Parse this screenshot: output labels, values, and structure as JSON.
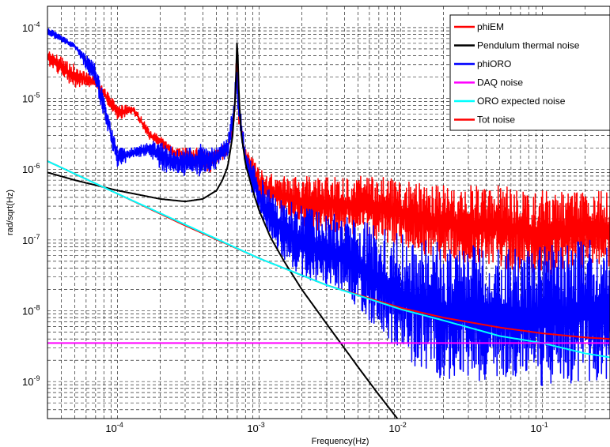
{
  "chart_data": {
    "type": "line",
    "title": "",
    "xlabel": "Frequency(Hz)",
    "ylabel": "rad/sqrt(Hz)",
    "x_scale": "log",
    "y_scale": "log",
    "xlim": [
      3.2e-05,
      0.3
    ],
    "ylim": [
      3e-10,
      0.0002
    ],
    "grid": true,
    "legend": "top-right",
    "x_ticks": [
      {
        "base": "10",
        "exp": "-4",
        "value": 0.0001
      },
      {
        "base": "10",
        "exp": "-3",
        "value": 0.001
      },
      {
        "base": "10",
        "exp": "-2",
        "value": 0.01
      },
      {
        "base": "10",
        "exp": "-1",
        "value": 0.1
      }
    ],
    "y_ticks": [
      {
        "base": "10",
        "exp": "-4",
        "value": 0.0001
      },
      {
        "base": "10",
        "exp": "-5",
        "value": 1e-05
      },
      {
        "base": "10",
        "exp": "-6",
        "value": 1e-06
      },
      {
        "base": "10",
        "exp": "-7",
        "value": 1e-07
      },
      {
        "base": "10",
        "exp": "-8",
        "value": 1e-08
      },
      {
        "base": "10",
        "exp": "-9",
        "value": 1e-09
      }
    ],
    "series": [
      {
        "name": "phiEM",
        "color": "#ff0000",
        "style": "noisy",
        "envelope": {
          "x": [
            3.2e-05,
            5e-05,
            7e-05,
            0.0001,
            0.00013,
            0.00017,
            0.0002,
            0.00025,
            0.0003,
            0.00035,
            0.0004,
            0.00045,
            0.0005,
            0.0006,
            0.00067,
            0.00069,
            0.00072,
            0.0008,
            0.0009,
            0.001,
            0.0012,
            0.0015,
            0.002,
            0.003,
            0.005,
            0.007,
            0.01,
            0.02,
            0.05,
            0.1,
            0.2,
            0.3
          ],
          "lo": [
            3e-05,
            1.4e-05,
            1.5e-05,
            5e-06,
            6e-06,
            2.5e-06,
            2.2e-06,
            1.4e-06,
            1.2e-06,
            1e-06,
            1e-06,
            9e-07,
            1.2e-06,
            1.5e-06,
            4e-06,
            2e-05,
            4e-06,
            1.2e-06,
            7e-07,
            4e-07,
            2.5e-07,
            2e-07,
            1.5e-07,
            1.3e-07,
            1.2e-07,
            1e-07,
            8e-08,
            5e-08,
            4e-08,
            3e-08,
            4e-08,
            4e-08
          ],
          "hi": [
            5e-05,
            3e-05,
            2e-05,
            8e-06,
            8e-06,
            3.5e-06,
            3e-06,
            2e-06,
            2e-06,
            2e-06,
            2e-06,
            1.8e-06,
            2e-06,
            2.5e-06,
            8e-06,
            5e-05,
            8e-06,
            2e-06,
            1.5e-06,
            1e-06,
            9e-07,
            8e-07,
            8e-07,
            8e-07,
            8e-07,
            8e-07,
            7e-07,
            6e-07,
            6e-07,
            5e-07,
            5e-07,
            5e-07
          ]
        }
      },
      {
        "name": "Pendulum thermal noise",
        "color": "#000000",
        "style": "smooth",
        "x": [
          3.2e-05,
          5e-05,
          0.0001,
          0.0002,
          0.0003,
          0.0004,
          0.0005,
          0.00055,
          0.0006,
          0.00065,
          0.00068,
          0.00069,
          0.0007,
          0.00071,
          0.00072,
          0.00075,
          0.0008,
          0.0009,
          0.001,
          0.0012,
          0.0015,
          0.002,
          0.003,
          0.005,
          0.007,
          0.01
        ],
        "y": [
          9e-07,
          7e-07,
          5e-07,
          3.8e-07,
          3.5e-07,
          3.8e-07,
          5e-07,
          7e-07,
          1.1e-06,
          3e-06,
          1.2e-05,
          3e-05,
          8e-05,
          3e-05,
          1e-05,
          3e-06,
          1.2e-06,
          5e-07,
          2.6e-07,
          1.1e-07,
          5e-08,
          2e-08,
          6.5e-09,
          1.6e-09,
          6.5e-10,
          2.6e-10
        ]
      },
      {
        "name": "phiORO",
        "color": "#0000ff",
        "style": "noisy",
        "envelope": {
          "x": [
            3.2e-05,
            5e-05,
            7e-05,
            0.0001,
            0.00013,
            0.00017,
            0.0002,
            0.00025,
            0.0003,
            0.00035,
            0.0004,
            0.00045,
            0.0005,
            0.0006,
            0.00067,
            0.00069,
            0.00072,
            0.0008,
            0.0009,
            0.001,
            0.0012,
            0.0015,
            0.002,
            0.003,
            0.005,
            0.007,
            0.01,
            0.02,
            0.05,
            0.1,
            0.2,
            0.3
          ],
          "lo": [
            8e-05,
            5e-05,
            1.5e-05,
            1e-06,
            1.5e-06,
            1.5e-06,
            1e-06,
            8e-07,
            8e-07,
            8e-07,
            8e-07,
            9e-07,
            1e-06,
            1.5e-06,
            5e-06,
            1e-05,
            5e-06,
            1e-06,
            4e-07,
            2e-07,
            1e-07,
            5e-08,
            3e-08,
            2e-08,
            1e-08,
            5e-09,
            2e-09,
            1e-09,
            1e-09,
            8e-10,
            1e-09,
            1e-09
          ],
          "hi": [
            0.0001,
            6e-05,
            3e-05,
            2e-06,
            2e-06,
            2.5e-06,
            2.5e-06,
            2e-06,
            2e-06,
            2e-06,
            2.5e-06,
            2e-06,
            2e-06,
            3e-06,
            1e-05,
            4e-05,
            1e-05,
            2e-06,
            1.2e-06,
            8e-07,
            5e-07,
            4e-07,
            3e-07,
            2.5e-07,
            2e-07,
            1.5e-07,
            1.2e-07,
            9e-08,
            8e-08,
            8e-08,
            1e-07,
            1e-07
          ]
        }
      },
      {
        "name": "DAQ noise",
        "color": "#ff00ff",
        "style": "smooth",
        "x": [
          3.2e-05,
          0.3
        ],
        "y": [
          3.5e-09,
          3.5e-09
        ]
      },
      {
        "name": "ORO expected noise",
        "color": "#00ffff",
        "style": "smooth",
        "x": [
          3.2e-05,
          0.0001,
          0.001,
          0.003,
          0.01,
          0.02,
          0.05,
          0.1,
          0.2,
          0.3
        ],
        "y": [
          1.3e-06,
          4.5e-07,
          5.5e-08,
          2.3e-08,
          1.05e-08,
          7.3e-09,
          4.4e-09,
          3.5e-09,
          2.5e-09,
          2.2e-09
        ]
      },
      {
        "name": "Tot noise",
        "color": "#ff0000",
        "style": "smooth",
        "x": [
          3.2e-05,
          0.0001,
          0.0003,
          0.001,
          0.003,
          0.01,
          0.02,
          0.05,
          0.1,
          0.2,
          0.3
        ],
        "y": [
          1.3e-06,
          4.5e-07,
          1.6e-07,
          5.5e-08,
          2.3e-08,
          1.1e-08,
          8e-09,
          5.8e-09,
          4.8e-09,
          4.2e-09,
          4e-09
        ]
      }
    ]
  }
}
